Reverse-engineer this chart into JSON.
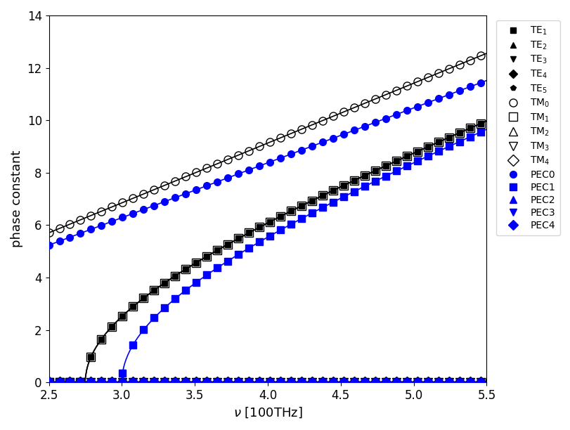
{
  "xlabel": "$\\nu$ [100THz]",
  "ylabel": "phase constant",
  "xlim": [
    2.5,
    5.5
  ],
  "ylim": [
    0,
    14
  ],
  "nu_min": 2.5,
  "nu_max": 5.5,
  "nu_points": 500,
  "c_light": 3.0,
  "n_te_tm": 1.0,
  "n_tm0": 1.09,
  "d_te_tm": 0.5455,
  "d_pec": 0.5,
  "te_ms": [
    1,
    2,
    3,
    4,
    5
  ],
  "tm_ms": [
    0,
    1,
    2,
    3,
    4
  ],
  "pec_ms": [
    0,
    1,
    2,
    3,
    4
  ],
  "te_markers": [
    "s",
    "^",
    "v",
    "D",
    "p"
  ],
  "tm_markers": [
    "o",
    "s",
    "^",
    "v",
    "D"
  ],
  "pec_markers": [
    "o",
    "s",
    "^",
    "v",
    "D"
  ],
  "te_labels": [
    "TE$_1$",
    "TE$_2$",
    "TE$_3$",
    "TE$_4$",
    "TE$_5$"
  ],
  "tm_labels": [
    "TM$_0$",
    "TM$_1$",
    "TM$_2$",
    "TM$_3$",
    "TM$_4$"
  ],
  "pec_labels": [
    "PEC0",
    "PEC1",
    "PEC2",
    "PEC3",
    "PEC4"
  ],
  "mark_every": 12,
  "ms_te": 6,
  "ms_tm": 8,
  "ms_pec": 7,
  "lw": 1.2,
  "black_color": "#000000",
  "blue_color": "#0000ff",
  "yticks": [
    0,
    2,
    4,
    6,
    8,
    10,
    12,
    14
  ],
  "xticks": [
    2.5,
    3.0,
    3.5,
    4.0,
    4.5,
    5.0,
    5.5
  ]
}
